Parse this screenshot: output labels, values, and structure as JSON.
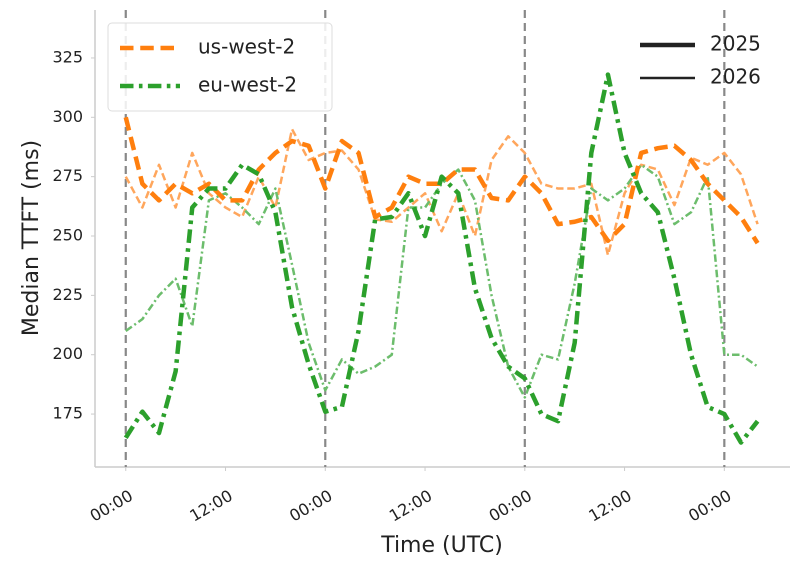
{
  "chart_data": {
    "type": "line",
    "xlabel": "Time (UTC)",
    "ylabel": "Median TTFT (ms)",
    "x": [
      0,
      2,
      4,
      6,
      8,
      10,
      12,
      14,
      16,
      18,
      20,
      22,
      24,
      26,
      28,
      30,
      32,
      34,
      36,
      38,
      40,
      42,
      44,
      46,
      48,
      50,
      52,
      54,
      56,
      58,
      60,
      62,
      64,
      66,
      68,
      70,
      72,
      74,
      76
    ],
    "xlim": [
      -3.7,
      79.9
    ],
    "xticks": [
      {
        "value": 0,
        "label": "00:00"
      },
      {
        "value": 12,
        "label": "12:00"
      },
      {
        "value": 24,
        "label": "00:00"
      },
      {
        "value": 36,
        "label": "12:00"
      },
      {
        "value": 48,
        "label": "00:00"
      },
      {
        "value": 60,
        "label": "12:00"
      },
      {
        "value": 72,
        "label": "00:00"
      }
    ],
    "vlines": [
      0,
      24,
      48,
      72
    ],
    "ylim": [
      152.7,
      345.2
    ],
    "yticks": [
      175,
      200,
      225,
      250,
      275,
      300,
      325
    ],
    "series": [
      {
        "name": "us-west-2",
        "year": "2025",
        "color": "#ff7f0e",
        "linestyle": "dashed",
        "linewidth": 4.5,
        "values": [
          300,
          272,
          265,
          272,
          268,
          272,
          265,
          265,
          278,
          285,
          290,
          288,
          270,
          290,
          285,
          258,
          262,
          275,
          272,
          272,
          278,
          278,
          266,
          265,
          275,
          268,
          255,
          256,
          258,
          248,
          255,
          285,
          287,
          288,
          282,
          272,
          265,
          258,
          247
        ]
      },
      {
        "name": "us-west-2",
        "year": "2026",
        "color": "#ffa65c",
        "linestyle": "dashed",
        "linewidth": 2.5,
        "values": [
          275,
          262,
          280,
          262,
          285,
          268,
          262,
          258,
          275,
          262,
          295,
          282,
          285,
          286,
          278,
          257,
          256,
          262,
          268,
          252,
          268,
          250,
          282,
          292,
          285,
          272,
          270,
          270,
          272,
          242,
          268,
          280,
          278,
          263,
          283,
          280,
          285,
          276,
          255
        ]
      },
      {
        "name": "eu-west-2",
        "year": "2025",
        "color": "#2ca02c",
        "linestyle": "dashdot",
        "linewidth": 4.5,
        "values": [
          165,
          176,
          167,
          193,
          262,
          270,
          270,
          280,
          276,
          260,
          220,
          196,
          176,
          178,
          210,
          257,
          258,
          268,
          250,
          275,
          268,
          228,
          207,
          195,
          190,
          175,
          172,
          205,
          285,
          318,
          285,
          268,
          260,
          232,
          200,
          178,
          175,
          163,
          172
        ]
      },
      {
        "name": "eu-west-2",
        "year": "2026",
        "color": "#6cbd6c",
        "linestyle": "dashdot",
        "linewidth": 2.5,
        "values": [
          210,
          215,
          225,
          232,
          212,
          265,
          268,
          262,
          255,
          270,
          238,
          205,
          185,
          198,
          192,
          195,
          200,
          262,
          262,
          272,
          278,
          265,
          225,
          195,
          182,
          200,
          198,
          230,
          270,
          265,
          270,
          280,
          275,
          255,
          260,
          275,
          200,
          200,
          195
        ]
      }
    ]
  }
}
